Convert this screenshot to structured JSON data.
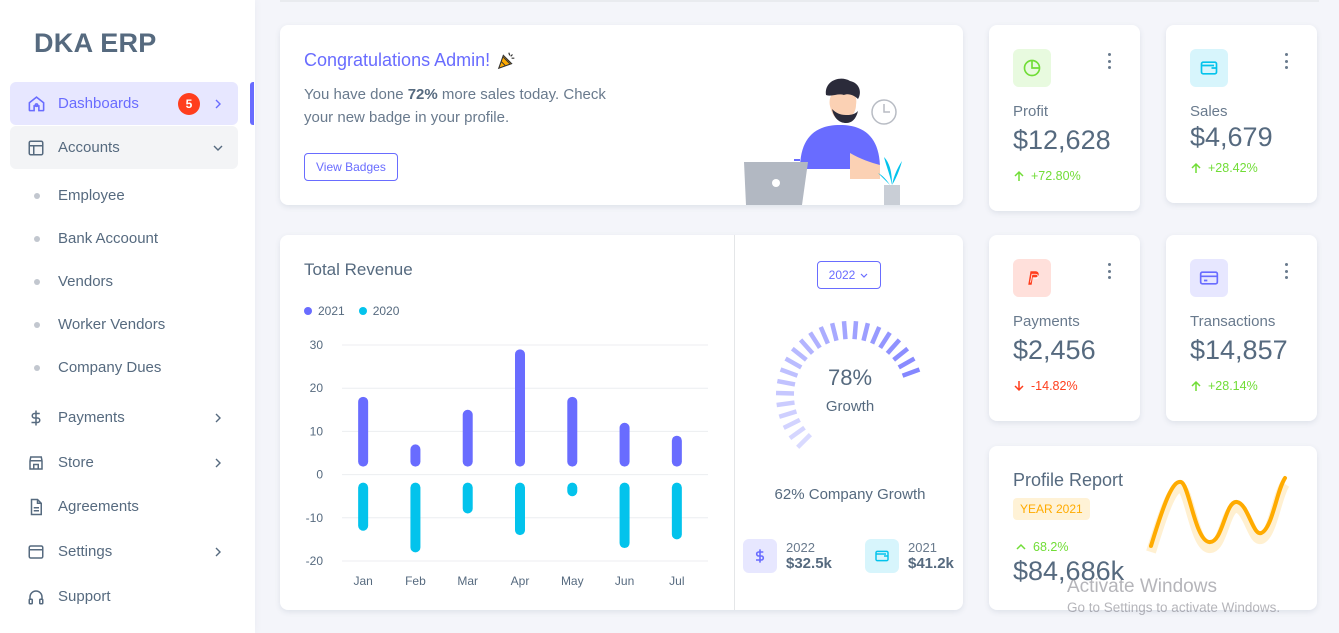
{
  "brand": "DKA ERP",
  "sidebar": {
    "items": [
      {
        "label": "Dashboards",
        "badge": "5",
        "icon": "home-icon"
      },
      {
        "label": "Accounts",
        "icon": "layout-icon"
      },
      {
        "label": "Payments",
        "icon": "dollar-icon"
      },
      {
        "label": "Store",
        "icon": "store-icon"
      },
      {
        "label": "Agreements",
        "icon": "file-icon"
      },
      {
        "label": "Settings",
        "icon": "window-icon"
      },
      {
        "label": "Support",
        "icon": "headphones-icon"
      }
    ],
    "sub_items": [
      "Employee",
      "Bank Accoount",
      "Vendors",
      "Worker Vendors",
      "Company Dues"
    ]
  },
  "congrats": {
    "title": "Congratulations Admin!",
    "text_before": "You have done ",
    "text_bold": "72%",
    "text_after": " more sales today. Check your new badge in your profile.",
    "button": "View Badges"
  },
  "stats": [
    {
      "label": "Profit",
      "value": "$12,628",
      "change": "+72.80%",
      "trend": "up",
      "icon": "pie-chart-icon",
      "color": "#71dd37"
    },
    {
      "label": "Sales",
      "value": "$4,679",
      "change": "+28.42%",
      "trend": "up",
      "icon": "wallet-icon",
      "color": "#03c3ec"
    },
    {
      "label": "Payments",
      "value": "$2,456",
      "change": "-14.82%",
      "trend": "down",
      "icon": "paypal-icon",
      "color": "#ff3e1d"
    },
    {
      "label": "Transactions",
      "value": "$14,857",
      "change": "+28.14%",
      "trend": "up",
      "icon": "credit-card-icon",
      "color": "#696cff"
    }
  ],
  "revenue": {
    "title": "Total Revenue",
    "year_select": "2022",
    "growth_percent": "78%",
    "growth_label": "Growth",
    "company_growth": "62% Company Growth",
    "mini": [
      {
        "year": "2022",
        "value": "$32.5k",
        "icon": "dollar-icon"
      },
      {
        "year": "2021",
        "value": "$41.2k",
        "icon": "wallet-icon"
      }
    ]
  },
  "chart_data": {
    "type": "bar",
    "categories": [
      "Jan",
      "Feb",
      "Mar",
      "Apr",
      "May",
      "Jun",
      "Jul"
    ],
    "series": [
      {
        "name": "2021",
        "values": [
          18,
          7,
          15,
          29,
          18,
          12,
          9
        ],
        "color": "#696cff"
      },
      {
        "name": "2020",
        "values": [
          -13,
          -18,
          -9,
          -14,
          -5,
          -17,
          -15
        ],
        "color": "#03c3ec"
      }
    ],
    "ylim": [
      -20,
      30
    ],
    "yticks": [
      "30",
      "20",
      "10",
      "0",
      "-10",
      "-20"
    ],
    "grid": true,
    "legend": "top-left"
  },
  "growth_gauge": {
    "value": 78
  },
  "profile_report": {
    "title": "Profile Report",
    "badge": "YEAR 2021",
    "change": "68.2%",
    "value": "$84,686k"
  },
  "watermark": {
    "line1": "Activate Windows",
    "line2": "Go to Settings to activate Windows."
  }
}
